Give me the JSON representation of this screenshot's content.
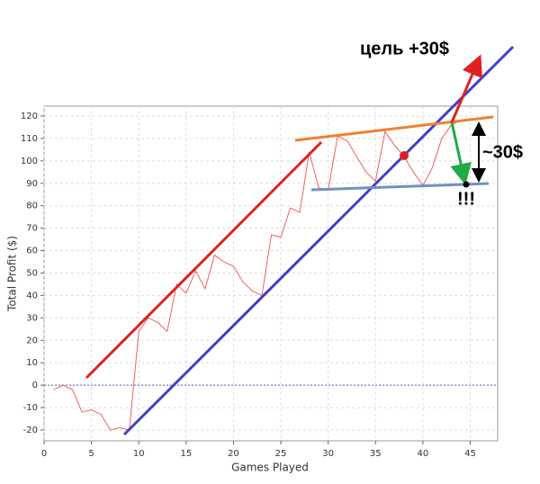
{
  "chart_data": {
    "type": "line",
    "x_label": "Games Played",
    "y_label": "Total Profit ($)",
    "x": [
      1,
      2,
      3,
      4,
      5,
      6,
      7,
      8,
      9,
      10,
      11,
      12,
      13,
      14,
      15,
      16,
      17,
      18,
      19,
      20,
      21,
      22,
      23,
      24,
      25,
      26,
      27,
      28,
      29,
      30,
      31,
      32,
      33,
      34,
      35,
      36,
      37,
      38,
      39,
      40,
      41,
      42,
      43,
      44
    ],
    "series": [
      {
        "color": "#f06060",
        "values": [
          -2,
          0,
          -2,
          -12,
          -11,
          -13,
          -20,
          -19,
          -20,
          24,
          30,
          28,
          24,
          45,
          41,
          51,
          43,
          58,
          55,
          53,
          46,
          42,
          40,
          67,
          66,
          79,
          77,
          104,
          88,
          87,
          111,
          109,
          102,
          95,
          91,
          113,
          107,
          102,
          95,
          89,
          97,
          110,
          116,
          118
        ]
      }
    ],
    "xlim": [
      0,
      47.9
    ],
    "ylim": [
      -24.8,
      124.4
    ],
    "xticks": [
      0,
      5,
      10,
      15,
      20,
      25,
      30,
      35,
      40,
      45
    ],
    "yticks": [
      -20,
      -10,
      0,
      10,
      20,
      30,
      40,
      50,
      60,
      70,
      80,
      90,
      100,
      110,
      120
    ],
    "grid": true,
    "annotations": [
      "цель +30$",
      "~30$",
      "!!!"
    ]
  }
}
